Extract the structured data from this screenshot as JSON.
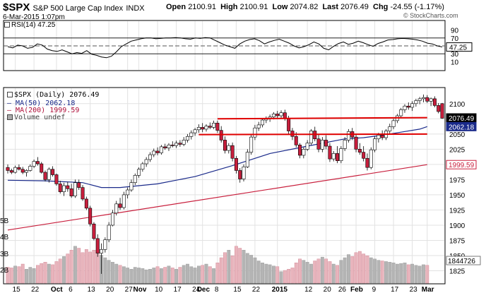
{
  "header": {
    "symbol": "$SPX",
    "name": "S&P 500 Large Cap Index",
    "exchange": "INDX",
    "date": "6-Mar-2015 1:07pm",
    "source": "© StockCharts.com",
    "open_label": "Open",
    "open": "2100.91",
    "high_label": "High",
    "high": "2100.91",
    "low_label": "Low",
    "low": "2074.82",
    "last_label": "Last",
    "last": "2076.49",
    "chg_label": "Chg",
    "chg": "-24.55 (-1.17%)"
  },
  "rsi": {
    "label": "RSI(14) 47.25",
    "value_badge": "47.25",
    "ticks": [
      "90",
      "70",
      "50",
      "30",
      "10"
    ],
    "ylim": [
      0,
      100
    ]
  },
  "legend": {
    "price": "$SPX (Daily) 2076.49",
    "ma50": "MA(50) 2062.18",
    "ma200": "MA(200) 1999.59",
    "volume": "Volume undef"
  },
  "colors": {
    "up": "#ffffff",
    "down": "#c81e3c",
    "ma50": "#1a2a8a",
    "ma200": "#c81e3c",
    "badge_price": "#000000",
    "badge_ma50": "#1a2a8a",
    "badge_ma200": "#c81e3c",
    "vol_up": "#b4b4b4",
    "vol_down": "#e8b4bc",
    "trendline": "#e00000"
  },
  "chart_data": {
    "type": "line",
    "y_ticks": [
      2100,
      2075,
      2050,
      2025,
      2000,
      1975,
      1950,
      1925,
      1900,
      1875,
      1850,
      1825
    ],
    "ylim": [
      1814,
      2116
    ],
    "badges": [
      "2076.49",
      "2062.18",
      "1999.59",
      "1844726"
    ],
    "vol_ticks": [
      "5B",
      "4B",
      "3B",
      "2B"
    ],
    "x_ticks": [
      "15",
      "22",
      "Oct",
      "6",
      "13",
      "20",
      "27",
      "Nov",
      "10",
      "17",
      "24",
      "Dec",
      "8",
      "15",
      "22",
      "2015",
      "12",
      "20",
      "26",
      "Feb",
      "9",
      "17",
      "23",
      "Mar"
    ],
    "candles": [
      [
        1995,
        2000,
        1985,
        1990
      ],
      [
        1990,
        1993,
        1984,
        1987
      ],
      [
        1987,
        1998,
        1985,
        1995
      ],
      [
        1995,
        2000,
        1990,
        1992
      ],
      [
        1992,
        1996,
        1984,
        1987
      ],
      [
        1987,
        1992,
        1980,
        1990
      ],
      [
        1990,
        2000,
        1988,
        1997
      ],
      [
        1997,
        2008,
        1994,
        2005
      ],
      [
        2005,
        2012,
        1998,
        2001
      ],
      [
        2001,
        2004,
        1985,
        1987
      ],
      [
        1987,
        1990,
        1972,
        1975
      ],
      [
        1975,
        1995,
        1970,
        1992
      ],
      [
        1992,
        1997,
        1980,
        1983
      ],
      [
        1983,
        1985,
        1965,
        1968
      ],
      [
        1968,
        1973,
        1952,
        1955
      ],
      [
        1955,
        1970,
        1948,
        1965
      ],
      [
        1965,
        1971,
        1955,
        1960
      ],
      [
        1960,
        1968,
        1945,
        1948
      ],
      [
        1948,
        1975,
        1945,
        1970
      ],
      [
        1970,
        1975,
        1958,
        1962
      ],
      [
        1962,
        1966,
        1940,
        1943
      ],
      [
        1943,
        1947,
        1925,
        1928
      ],
      [
        1928,
        1932,
        1898,
        1902
      ],
      [
        1902,
        1905,
        1875,
        1878
      ],
      [
        1878,
        1885,
        1848,
        1854
      ],
      [
        1854,
        1870,
        1820,
        1860
      ],
      [
        1860,
        1880,
        1855,
        1876
      ],
      [
        1876,
        1905,
        1872,
        1900
      ],
      [
        1900,
        1925,
        1898,
        1920
      ],
      [
        1920,
        1940,
        1916,
        1935
      ],
      [
        1935,
        1945,
        1925,
        1929
      ],
      [
        1929,
        1955,
        1926,
        1950
      ],
      [
        1950,
        1962,
        1944,
        1958
      ],
      [
        1958,
        1975,
        1955,
        1970
      ],
      [
        1970,
        1985,
        1966,
        1982
      ],
      [
        1982,
        1995,
        1978,
        1992
      ],
      [
        1992,
        2004,
        1988,
        2001
      ],
      [
        2001,
        2012,
        1996,
        2008
      ],
      [
        2008,
        2020,
        2004,
        2016
      ],
      [
        2016,
        2026,
        2012,
        2022
      ],
      [
        2022,
        2028,
        2015,
        2019
      ],
      [
        2019,
        2032,
        2016,
        2029
      ],
      [
        2029,
        2034,
        2024,
        2027
      ],
      [
        2027,
        2035,
        2022,
        2032
      ],
      [
        2032,
        2038,
        2028,
        2031
      ],
      [
        2031,
        2039,
        2027,
        2035
      ],
      [
        2035,
        2040,
        2029,
        2033
      ],
      [
        2033,
        2045,
        2030,
        2040
      ],
      [
        2040,
        2050,
        2036,
        2046
      ],
      [
        2046,
        2056,
        2041,
        2052
      ],
      [
        2052,
        2060,
        2047,
        2057
      ],
      [
        2057,
        2066,
        2052,
        2061
      ],
      [
        2061,
        2068,
        2053,
        2058
      ],
      [
        2058,
        2066,
        2054,
        2063
      ],
      [
        2063,
        2069,
        2058,
        2061
      ],
      [
        2061,
        2072,
        2058,
        2068
      ],
      [
        2068,
        2072,
        2052,
        2056
      ],
      [
        2056,
        2063,
        2036,
        2040
      ],
      [
        2040,
        2046,
        2018,
        2023
      ],
      [
        2023,
        2035,
        2018,
        2031
      ],
      [
        2031,
        2036,
        2005,
        2010
      ],
      [
        2010,
        2014,
        1985,
        1990
      ],
      [
        1990,
        1994,
        1970,
        1976
      ],
      [
        1976,
        2000,
        1972,
        1996
      ],
      [
        1996,
        2025,
        1994,
        2020
      ],
      [
        2020,
        2050,
        2016,
        2045
      ],
      [
        2045,
        2065,
        2040,
        2060
      ],
      [
        2060,
        2070,
        2055,
        2065
      ],
      [
        2065,
        2076,
        2061,
        2073
      ],
      [
        2073,
        2079,
        2068,
        2075
      ],
      [
        2075,
        2082,
        2070,
        2078
      ],
      [
        2078,
        2086,
        2074,
        2083
      ],
      [
        2083,
        2088,
        2076,
        2080
      ],
      [
        2080,
        2089,
        2075,
        2085
      ],
      [
        2085,
        2090,
        2072,
        2076
      ],
      [
        2076,
        2080,
        2050,
        2055
      ],
      [
        2055,
        2060,
        2040,
        2046
      ],
      [
        2046,
        2053,
        2028,
        2032
      ],
      [
        2032,
        2035,
        2010,
        2015
      ],
      [
        2015,
        2028,
        2010,
        2025
      ],
      [
        2025,
        2040,
        2022,
        2035
      ],
      [
        2035,
        2058,
        2032,
        2055
      ],
      [
        2055,
        2062,
        2038,
        2042
      ],
      [
        2042,
        2050,
        2020,
        2025
      ],
      [
        2025,
        2045,
        2020,
        2040
      ],
      [
        2040,
        2048,
        2025,
        2030
      ],
      [
        2030,
        2035,
        2004,
        2009
      ],
      [
        2009,
        2022,
        2005,
        2018
      ],
      [
        2018,
        2030,
        2002,
        2006
      ],
      [
        2006,
        2030,
        2002,
        2026
      ],
      [
        2026,
        2045,
        2022,
        2040
      ],
      [
        2040,
        2058,
        2036,
        2054
      ],
      [
        2054,
        2060,
        2040,
        2045
      ],
      [
        2045,
        2050,
        2020,
        2025
      ],
      [
        2025,
        2035,
        2016,
        2020
      ],
      [
        2020,
        2030,
        2005,
        2010
      ],
      [
        2010,
        2018,
        1990,
        1995
      ],
      [
        1995,
        2028,
        1992,
        2024
      ],
      [
        2024,
        2046,
        2020,
        2042
      ],
      [
        2042,
        2052,
        2036,
        2048
      ],
      [
        2048,
        2056,
        2040,
        2044
      ],
      [
        2044,
        2058,
        2040,
        2055
      ],
      [
        2055,
        2067,
        2050,
        2062
      ],
      [
        2062,
        2075,
        2058,
        2072
      ],
      [
        2072,
        2083,
        2068,
        2080
      ],
      [
        2080,
        2093,
        2076,
        2090
      ],
      [
        2090,
        2099,
        2085,
        2096
      ],
      [
        2096,
        2102,
        2090,
        2094
      ],
      [
        2094,
        2104,
        2088,
        2100
      ],
      [
        2100,
        2108,
        2095,
        2105
      ],
      [
        2105,
        2111,
        2099,
        2108
      ],
      [
        2108,
        2115,
        2102,
        2110
      ],
      [
        2110,
        2114,
        2101,
        2104
      ],
      [
        2104,
        2110,
        2096,
        2108
      ],
      [
        2108,
        2112,
        2094,
        2097
      ],
      [
        2097,
        2101,
        2084,
        2087
      ],
      [
        2100,
        2101,
        2075,
        2076
      ]
    ],
    "ma50": [
      [
        0,
        1974
      ],
      [
        10,
        1973
      ],
      [
        20,
        1970
      ],
      [
        25,
        1962
      ],
      [
        30,
        1962
      ],
      [
        40,
        1968
      ],
      [
        50,
        1980
      ],
      [
        60,
        1998
      ],
      [
        70,
        2018
      ],
      [
        80,
        2030
      ],
      [
        90,
        2042
      ],
      [
        95,
        2044
      ],
      [
        100,
        2048
      ],
      [
        105,
        2053
      ],
      [
        110,
        2058
      ],
      [
        112,
        2062.18
      ]
    ],
    "ma200": [
      [
        0,
        1892
      ],
      [
        112,
        1999.59
      ]
    ],
    "trendlines": [
      [
        [
          56,
          2075
        ],
        [
          112,
          2077
        ]
      ],
      [
        [
          51,
          2049
        ],
        [
          112,
          2050
        ]
      ]
    ],
    "rsi_values": [
      48,
      45,
      52,
      50,
      44,
      46,
      55,
      52,
      42,
      38,
      36,
      40,
      35,
      30,
      33,
      31,
      38,
      29,
      26,
      22,
      20,
      24,
      35,
      48,
      55,
      62,
      65,
      68,
      70,
      70,
      68,
      69,
      70,
      70,
      71,
      70,
      68,
      67,
      70,
      69,
      71,
      70,
      64,
      58,
      52,
      48,
      44,
      55,
      62,
      66,
      68,
      63,
      55,
      60,
      64,
      67,
      62,
      57,
      50,
      45,
      48,
      53,
      60,
      55,
      44,
      40,
      49,
      56,
      60,
      54,
      57,
      62,
      58,
      53,
      49,
      56,
      60,
      65,
      66,
      68,
      69,
      68,
      67,
      65,
      62,
      57,
      55,
      50,
      47.25
    ],
    "volume": [
      0.25,
      0.24,
      0.27,
      0.26,
      0.3,
      0.22,
      0.25,
      0.23,
      0.28,
      0.31,
      0.33,
      0.3,
      0.29,
      0.34,
      0.38,
      0.42,
      0.46,
      0.52,
      0.58,
      0.55,
      0.48,
      0.53,
      0.49,
      0.52,
      0.7,
      0.44,
      0.4,
      0.36,
      0.33,
      0.3,
      0.28,
      0.26,
      0.24,
      0.22,
      0.25,
      0.24,
      0.23,
      0.21,
      0.22,
      0.24,
      0.26,
      0.23,
      0.25,
      0.27,
      0.24,
      0.22,
      0.25,
      0.28,
      0.3,
      0.26,
      0.24,
      0.27,
      0.28,
      0.3,
      0.26,
      0.23,
      0.32,
      0.4,
      0.48,
      0.52,
      0.43,
      0.58,
      0.55,
      0.52,
      0.47,
      0.44,
      0.4,
      0.35,
      0.32,
      0.3,
      0.29,
      0.27,
      0.26,
      0.18,
      0.2,
      0.22,
      0.24,
      0.32,
      0.38,
      0.36,
      0.33,
      0.3,
      0.35,
      0.38,
      0.41,
      0.38,
      0.34,
      0.3,
      0.28,
      0.36,
      0.4,
      0.45,
      0.42,
      0.48,
      0.5,
      0.46,
      0.43,
      0.4,
      0.38,
      0.36,
      0.35,
      0.34,
      0.33,
      0.32,
      0.3,
      0.31,
      0.32,
      0.29,
      0.3,
      0.28,
      0.27,
      0.29,
      0.28
    ]
  }
}
